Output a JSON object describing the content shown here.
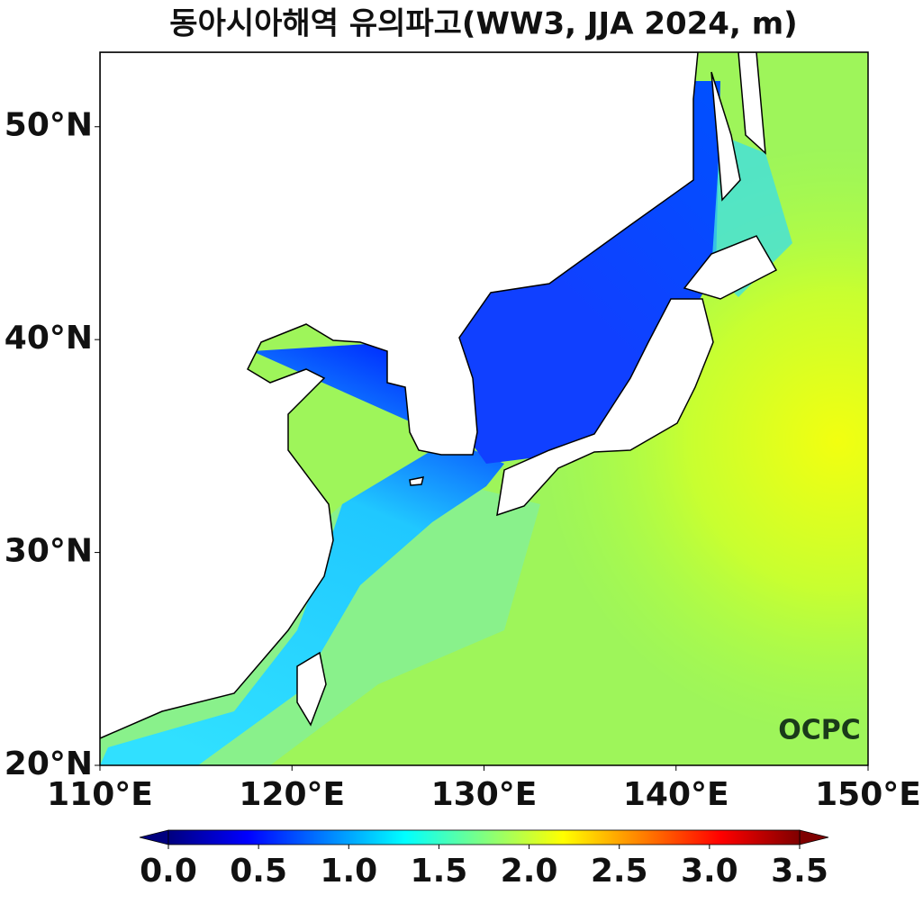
{
  "title": "동아시아해역 유의파고(WW3, JJA 2024, m)",
  "map": {
    "xlim": [
      110,
      150
    ],
    "ylim": [
      20,
      53.5
    ],
    "xticks": [
      {
        "value": 110,
        "label": "110°E"
      },
      {
        "value": 120,
        "label": "120°E"
      },
      {
        "value": 130,
        "label": "130°E"
      },
      {
        "value": 140,
        "label": "140°E"
      },
      {
        "value": 150,
        "label": "150°E"
      }
    ],
    "yticks": [
      {
        "value": 20,
        "label": "20°N"
      },
      {
        "value": 30,
        "label": "30°N"
      },
      {
        "value": 40,
        "label": "40°N"
      },
      {
        "value": 50,
        "label": "50°N"
      }
    ]
  },
  "colorbar": {
    "lim": [
      0,
      3.5
    ],
    "ticks": [
      {
        "value": 0,
        "label": "0.0"
      },
      0.5,
      {
        "value": 1,
        "label": "1.0"
      },
      1.5,
      {
        "value": 2,
        "label": "2.0"
      },
      2.5,
      {
        "value": 3,
        "label": "3.0"
      },
      3.5
    ],
    "colormap": [
      "#00007f",
      "#0000ff",
      "#0080ff",
      "#00ffff",
      "#80ff80",
      "#ffff00",
      "#ff8000",
      "#ff0000",
      "#7f0000"
    ]
  },
  "logo": "OCPC"
}
